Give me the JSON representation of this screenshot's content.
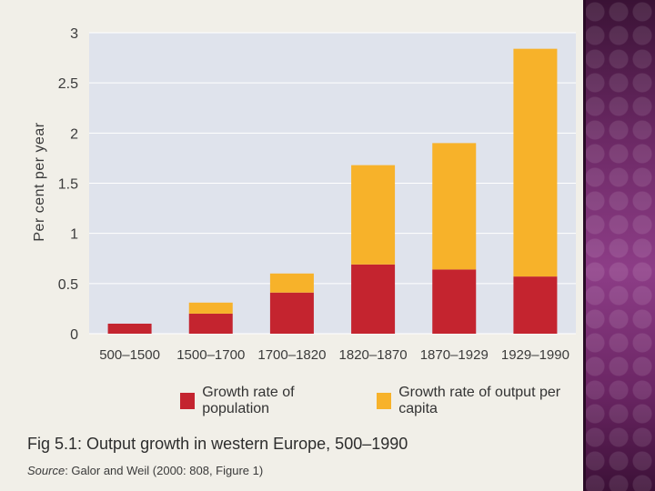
{
  "chart_data": {
    "type": "bar",
    "stacked": true,
    "categories": [
      "500–1500",
      "1500–1700",
      "1700–1820",
      "1820–1870",
      "1870–1929",
      "1929–1990"
    ],
    "series": [
      {
        "name": "Growth rate of population",
        "color": "#c4242f",
        "values": [
          0.1,
          0.2,
          0.41,
          0.69,
          0.64,
          0.57
        ]
      },
      {
        "name": "Growth rate of output per capita",
        "color": "#f7b22a",
        "values": [
          0.0,
          0.11,
          0.19,
          0.99,
          1.26,
          2.27
        ]
      }
    ],
    "ylabel": "Per cent per year",
    "xlabel": "",
    "ylim": [
      0,
      3
    ],
    "yticks": [
      "0",
      "0.5",
      "1",
      "1.5",
      "2",
      "2.5",
      "3"
    ],
    "ytick_values": [
      0,
      0.5,
      1,
      1.5,
      2,
      2.5,
      3
    ],
    "grid": true,
    "legend_position": "bottom"
  },
  "legend": {
    "population_label": "Growth rate of population",
    "output_label": "Growth rate of output per capita"
  },
  "caption": "Fig 5.1: Output growth in western Europe, 500–1990",
  "source": {
    "label": "Source",
    "text": ": Galor and Weil (2000: 808, Figure 1)"
  },
  "colors": {
    "plot_background": "#dfe3ec",
    "population": "#c4242f",
    "output": "#f7b22a"
  }
}
